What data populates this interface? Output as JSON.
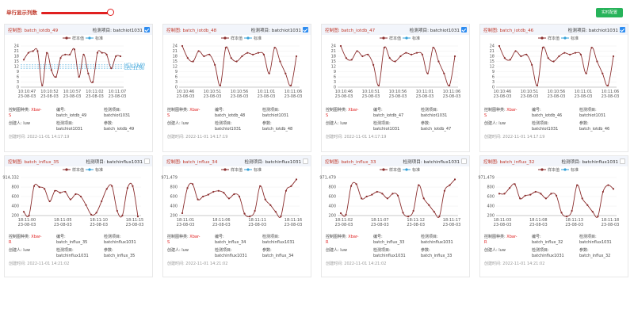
{
  "toolbar": {
    "row_label": "单行显示列数",
    "config_button": "实时配置"
  },
  "legend": {
    "sample": "样本值",
    "standard": "标准"
  },
  "labels": {
    "chart_type": "控制图种类:",
    "code": "编号:",
    "item": "检测项目:",
    "creator": "创建人:",
    "item2": "检测项目:",
    "param": "参数:",
    "created_at": "创建时间:"
  },
  "colors": {
    "accent": "#c0392b",
    "series": "#8b2e2e",
    "limit": "#33a0d8",
    "button": "#27b35a",
    "checkbox": "#2d8cf0"
  },
  "cards": [
    {
      "title": "控制图: batch_iotdb_49",
      "item": "检测项目: batchiot1031",
      "checked": true,
      "chart_kind": "Xbar-",
      "chart_kind2": "S",
      "code": "batch_iotdb_49",
      "item_value": "batchiot1031",
      "creator": "luw",
      "item2_value": "batchiot1031",
      "param": "batch_iotdb_49",
      "created": "2022-11-01 14:17:19",
      "chart_data": {
        "type": "line",
        "yticks": [
          "0",
          "3",
          "6",
          "9",
          "12",
          "15",
          "18",
          "21",
          "24"
        ],
        "ylim": [
          0,
          24
        ],
        "xticks": [
          "10:10:47\n23-08-03",
          "10:10:52\n23-08-03",
          "10:10:57\n23-08-03",
          "10:11:02\n23-08-03",
          "10:11:07\n23-08-03"
        ],
        "values": [
          16,
          20,
          21,
          21,
          1,
          20,
          10,
          6,
          17,
          19,
          19,
          22,
          6,
          19,
          8,
          3,
          20,
          20,
          19,
          11,
          18,
          18
        ],
        "limits": [
          {
            "label": "UCL:13.00",
            "value": 13
          },
          {
            "label": "CL:12.00",
            "value": 12
          },
          {
            "label": "LCL:11.00",
            "value": 11
          }
        ]
      }
    },
    {
      "title": "控制图: batch_iotdb_48",
      "item": "检测项目: batchiot1031",
      "checked": true,
      "chart_kind": "Xbar-",
      "chart_kind2": "S",
      "code": "batch_iotdb_48",
      "item_value": "batchiot1031",
      "creator": "luw",
      "item2_value": "batchiot1031",
      "param": "batch_iotdb_48",
      "created": "2022-11-01 14:17:19",
      "chart_data": {
        "type": "line",
        "yticks": [
          "0",
          "3",
          "6",
          "9",
          "12",
          "15",
          "18",
          "21",
          "24"
        ],
        "ylim": [
          0,
          24
        ],
        "xticks": [
          "10:10:46\n23-08-03",
          "10:10:51\n23-08-03",
          "10:10:56\n23-08-03",
          "10:11:01\n23-08-03",
          "10:11:06\n23-08-03"
        ],
        "values": [
          24,
          17,
          15,
          21,
          18,
          19,
          13,
          1,
          23,
          17,
          15,
          18,
          20,
          19,
          20,
          19,
          8,
          23,
          15,
          8,
          1,
          18
        ],
        "limits": []
      }
    },
    {
      "title": "控制图: batch_iotdb_47",
      "item": "检测项目: batchiot1031",
      "checked": true,
      "chart_kind": "Xbar-",
      "chart_kind2": "S",
      "code": "batch_iotdb_47",
      "item_value": "batchiot1031",
      "creator": "luw",
      "item2_value": "batchiot1031",
      "param": "batch_iotdb_47",
      "created": "2022-11-01 14:17:19",
      "chart_data": {
        "type": "line",
        "yticks": [
          "0",
          "3",
          "6",
          "9",
          "12",
          "15",
          "18",
          "21",
          "24"
        ],
        "ylim": [
          0,
          24
        ],
        "xticks": [
          "10:10:46\n23-08-03",
          "10:10:51\n23-08-03",
          "10:10:56\n23-08-03",
          "10:11:01\n23-08-03",
          "10:11:06\n23-08-03"
        ],
        "values": [
          24,
          17,
          16,
          21,
          18,
          19,
          13,
          1,
          23,
          17,
          15,
          18,
          20,
          19,
          20,
          19,
          8,
          23,
          15,
          8,
          1,
          18
        ],
        "limits": []
      }
    },
    {
      "title": "控制图: batch_iotdb_46",
      "item": "检测项目: batchiot1031",
      "checked": true,
      "chart_kind": "Xbar-",
      "chart_kind2": "S",
      "code": "batch_iotdb_46",
      "item_value": "batchiot1031",
      "creator": "luw",
      "item2_value": "batchiot1031",
      "param": "batch_iotdb_46",
      "created": "2022-11-01 14:17:19",
      "chart_data": {
        "type": "line",
        "yticks": [
          "0",
          "3",
          "6",
          "9",
          "12",
          "15",
          "18",
          "21",
          "24"
        ],
        "ylim": [
          0,
          24
        ],
        "xticks": [
          "10:10:46\n23-08-03",
          "10:10:51\n23-08-03",
          "10:10:56\n23-08-03",
          "10:11:01\n23-08-03",
          "10:11:06\n23-08-03"
        ],
        "values": [
          24,
          17,
          16,
          21,
          18,
          19,
          13,
          1,
          23,
          17,
          15,
          18,
          20,
          19,
          20,
          19,
          8,
          23,
          15,
          8,
          1,
          18
        ],
        "limits": []
      }
    },
    {
      "title": "控制图: batch_influx_35",
      "item": "检测项目: batchinflux1031",
      "checked": false,
      "chart_kind": "Xbar-",
      "chart_kind2": "R",
      "code": "batch_influx_35",
      "item_value": "batchinflux1031",
      "creator": "luw",
      "item2_value": "batchinflux1031",
      "param": "batch_influx_35",
      "created": "2022-11-01 14:21:02",
      "chart_data": {
        "type": "line",
        "yticks": [
          "200",
          "400",
          "600",
          "800",
          "914,332"
        ],
        "ylim": [
          200,
          914332
        ],
        "xticks": [
          "18:11:00\n23-08-03",
          "18:11:05\n23-08-03",
          "18:11:10\n23-08-03",
          "18:11:15\n23-08-03"
        ],
        "values": [
          280,
          200,
          820,
          800,
          760,
          500,
          720,
          680,
          700,
          540,
          650,
          600,
          420,
          220,
          260,
          500,
          760,
          820,
          300,
          200,
          780,
          820,
          180
        ],
        "limits": []
      }
    },
    {
      "title": "控制图: batch_influx_34",
      "item": "检测项目: batchinflux1031",
      "checked": false,
      "chart_kind": "Xbar-",
      "chart_kind2": "S",
      "code": "batch_influx_34",
      "item_value": "batchinflux1031",
      "creator": "luw",
      "item2_value": "batchinflux1031",
      "param": "batch_influx_34",
      "created": "2022-11-01 14:21:02",
      "chart_data": {
        "type": "line",
        "yticks": [
          "200",
          "400",
          "600",
          "800",
          "971,479"
        ],
        "ylim": [
          200,
          971479
        ],
        "xticks": [
          "18:11:01\n23-08-03",
          "18:11:06\n23-08-03",
          "18:11:11\n23-08-03",
          "18:11:16\n23-08-03"
        ],
        "values": [
          250,
          780,
          860,
          540,
          600,
          640,
          700,
          720,
          680,
          560,
          650,
          600,
          240,
          180,
          300,
          820,
          540,
          420,
          280,
          180,
          720,
          820,
          960
        ],
        "limits": []
      }
    },
    {
      "title": "控制图: batch_influx_33",
      "item": "检测项目: batchinflux1031",
      "checked": false,
      "chart_kind": "Xbar-",
      "chart_kind2": "R",
      "code": "batch_influx_33",
      "item_value": "batchinflux1031",
      "creator": "luw",
      "item2_value": "batchinflux1031",
      "param": "batch_influx_33",
      "created": "2022-11-01 14:21:02",
      "chart_data": {
        "type": "line",
        "yticks": [
          "200",
          "400",
          "600",
          "800",
          "971,479"
        ],
        "ylim": [
          200,
          971479
        ],
        "xticks": [
          "18:11:02\n23-08-03",
          "18:11:07\n23-08-03",
          "18:11:12\n23-08-03",
          "18:11:17\n23-08-03"
        ],
        "values": [
          250,
          220,
          820,
          860,
          560,
          600,
          640,
          700,
          660,
          560,
          660,
          620,
          260,
          180,
          300,
          840,
          560,
          420,
          280,
          180,
          720,
          840,
          960
        ],
        "limits": []
      }
    },
    {
      "title": "控制图: batch_influx_32",
      "item": "检测项目: batchinflux1031",
      "checked": false,
      "chart_kind": "Xbar-",
      "chart_kind2": "R",
      "code": "batch_influx_32",
      "item_value": "batchinflux1031",
      "creator": "luw",
      "item2_value": "batchinflux1031",
      "param": "batch_influx_32",
      "created": "2022-11-01 14:21:02",
      "chart_data": {
        "type": "line",
        "yticks": [
          "200",
          "400",
          "600",
          "800",
          "971,479"
        ],
        "ylim": [
          200,
          971479
        ],
        "xticks": [
          "18:11:03\n23-08-03",
          "18:11:08\n23-08-03",
          "18:11:13\n23-08-03",
          "18:11:18\n23-08-03"
        ],
        "values": [
          660,
          660,
          780,
          860,
          560,
          620,
          640,
          700,
          660,
          560,
          660,
          620,
          260,
          180,
          300,
          840,
          560,
          420,
          280,
          180,
          700,
          840,
          760
        ],
        "limits": []
      }
    }
  ]
}
